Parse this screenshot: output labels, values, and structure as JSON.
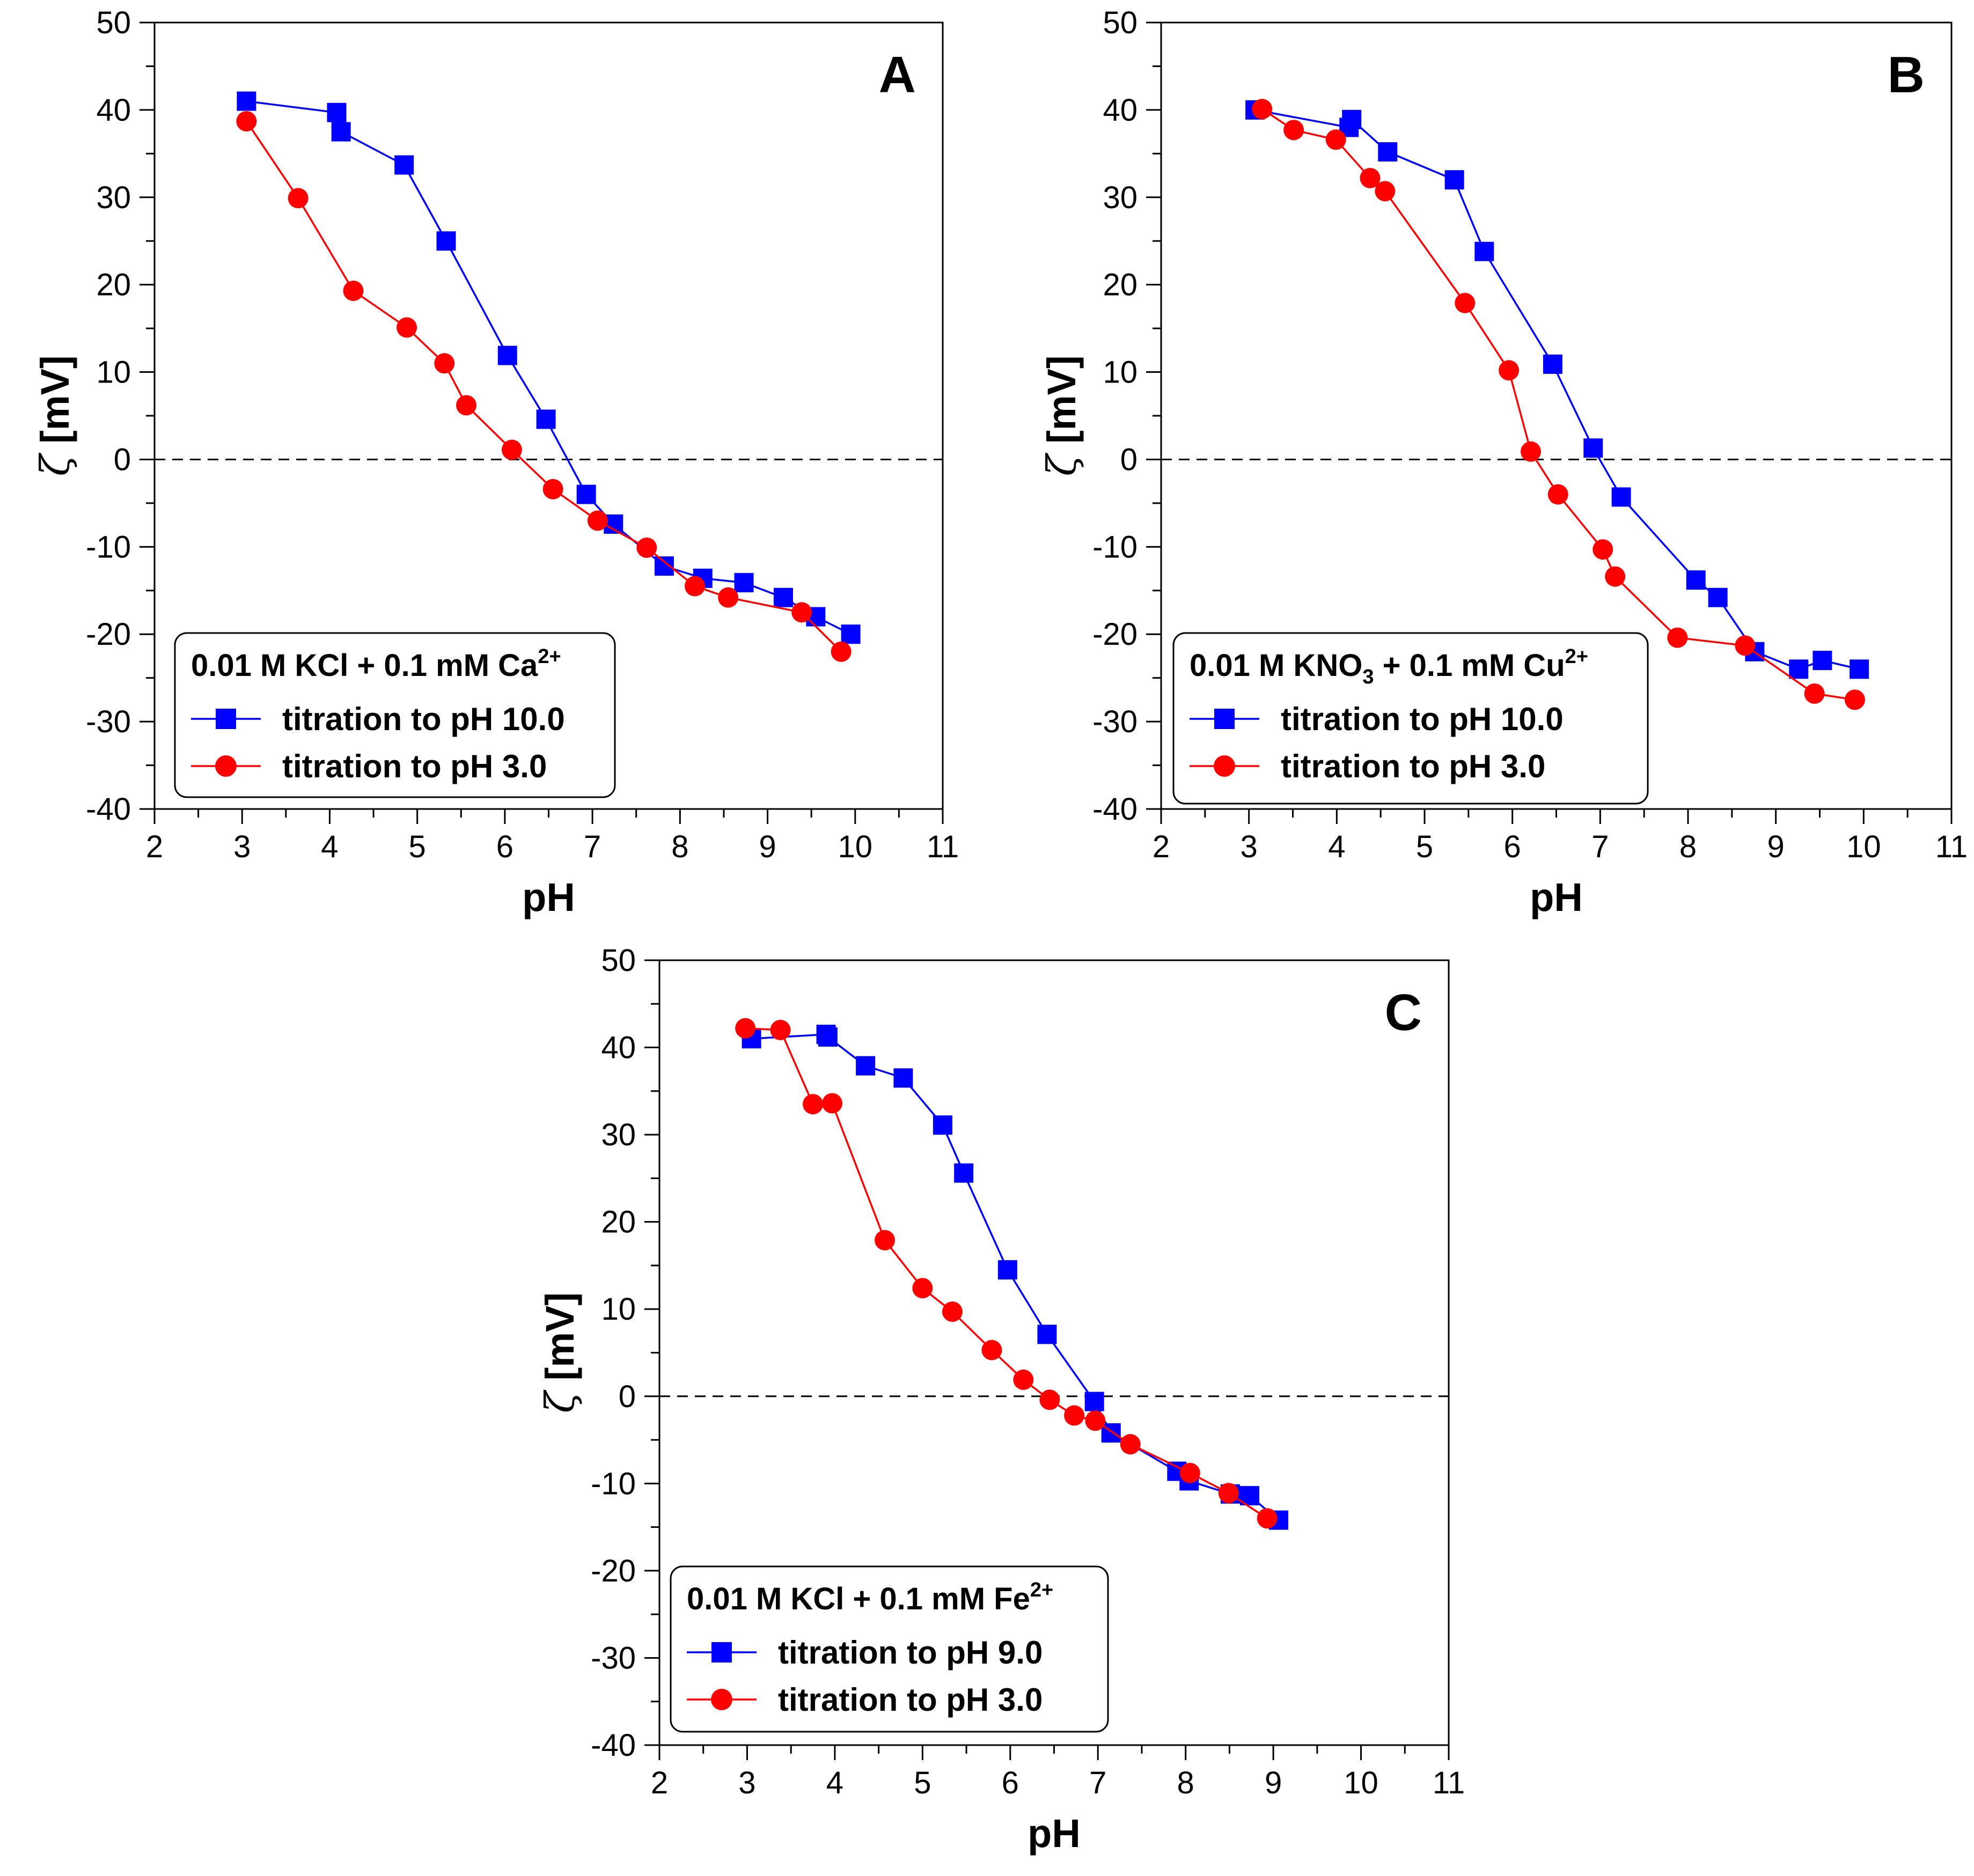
{
  "chart_data": [
    {
      "type": "line",
      "panel_label": "A",
      "xlabel": "pH",
      "ylabel_symbol": "ζ",
      "ylabel_unit": "[mV]",
      "xlim": [
        2,
        11
      ],
      "ylim": [
        -40,
        50
      ],
      "xticks": [
        2,
        3,
        4,
        5,
        6,
        7,
        8,
        9,
        10,
        11
      ],
      "yticks": [
        -40,
        -30,
        -20,
        -10,
        0,
        10,
        20,
        30,
        40,
        50
      ],
      "zero_line": true,
      "legend": {
        "title_base": "0.01 M KCl + 0.1 mM Ca",
        "title_sub": "",
        "title_mid": "",
        "title_sup": "2+",
        "placement": "bottom-left"
      },
      "series": [
        {
          "name": "titration to pH 10.0",
          "color": "#0000ff",
          "marker": "square",
          "x": [
            3.05,
            4.08,
            4.13,
            4.85,
            5.33,
            6.03,
            6.47,
            6.93,
            7.24,
            7.82,
            8.26,
            8.73,
            9.18,
            9.55,
            9.95
          ],
          "y": [
            41.0,
            39.7,
            37.5,
            33.7,
            25.0,
            11.9,
            4.6,
            -4.0,
            -7.4,
            -12.2,
            -13.6,
            -14.1,
            -15.8,
            -18.0,
            -20.0
          ]
        },
        {
          "name": "titration to pH 3.0",
          "color": "#ff0000",
          "marker": "circle",
          "x": [
            3.05,
            3.64,
            4.27,
            4.88,
            5.31,
            5.56,
            6.08,
            6.55,
            7.06,
            7.62,
            8.17,
            8.55,
            9.39,
            9.84
          ],
          "y": [
            38.7,
            29.9,
            19.3,
            15.1,
            11.0,
            6.2,
            1.1,
            -3.4,
            -7.0,
            -10.1,
            -14.5,
            -15.8,
            -17.5,
            -22.0
          ]
        }
      ]
    },
    {
      "type": "line",
      "panel_label": "B",
      "xlabel": "pH",
      "ylabel_symbol": "ζ",
      "ylabel_unit": "[mV]",
      "xlim": [
        2,
        11
      ],
      "ylim": [
        -40,
        50
      ],
      "xticks": [
        2,
        3,
        4,
        5,
        6,
        7,
        8,
        9,
        10,
        11
      ],
      "yticks": [
        -40,
        -30,
        -20,
        -10,
        0,
        10,
        20,
        30,
        40,
        50
      ],
      "zero_line": true,
      "legend": {
        "title_base": "0.01 M KNO",
        "title_sub": "3",
        "title_mid": " + 0.1 mM Cu",
        "title_sup": "2+",
        "placement": "bottom-left"
      },
      "series": [
        {
          "name": "titration to pH 10.0",
          "color": "#0000ff",
          "marker": "square",
          "x": [
            3.07,
            4.14,
            4.17,
            4.58,
            5.34,
            5.68,
            6.46,
            6.92,
            7.24,
            8.09,
            8.34,
            8.76,
            9.26,
            9.53,
            9.95
          ],
          "y": [
            40.0,
            38.0,
            38.9,
            35.2,
            32.0,
            23.8,
            10.9,
            1.3,
            -4.3,
            -13.8,
            -15.8,
            -22.0,
            -24.0,
            -23.0,
            -24.0
          ]
        },
        {
          "name": "titration to pH 3.0",
          "color": "#ff0000",
          "marker": "circle",
          "x": [
            3.15,
            3.51,
            3.99,
            4.38,
            4.55,
            5.46,
            5.96,
            6.21,
            6.52,
            7.03,
            7.17,
            7.88,
            8.65,
            9.44,
            9.9
          ],
          "y": [
            40.1,
            37.7,
            36.6,
            32.2,
            30.7,
            17.9,
            10.2,
            0.9,
            -4.0,
            -10.3,
            -13.4,
            -20.4,
            -21.3,
            -26.8,
            -27.5
          ]
        }
      ]
    },
    {
      "type": "line",
      "panel_label": "C",
      "xlabel": "pH",
      "ylabel_symbol": "ζ",
      "ylabel_unit": "[mV]",
      "xlim": [
        2,
        11
      ],
      "ylim": [
        -40,
        50
      ],
      "xticks": [
        2,
        3,
        4,
        5,
        6,
        7,
        8,
        9,
        10,
        11
      ],
      "yticks": [
        -40,
        -30,
        -20,
        -10,
        0,
        10,
        20,
        30,
        40,
        50
      ],
      "zero_line": true,
      "legend": {
        "title_base": "0.01 M KCl + 0.1 mM Fe",
        "title_sub": "",
        "title_mid": "",
        "title_sup": "2+",
        "placement": "bottom-left"
      },
      "series": [
        {
          "name": "titration to pH 9.0",
          "color": "#0000ff",
          "marker": "square",
          "x": [
            3.05,
            3.9,
            3.92,
            4.35,
            4.78,
            5.23,
            5.47,
            5.97,
            6.42,
            6.96,
            7.15,
            7.9,
            8.04,
            8.51,
            8.73,
            9.06
          ],
          "y": [
            41.0,
            41.5,
            41.2,
            37.9,
            36.5,
            31.1,
            25.6,
            14.5,
            7.1,
            -0.6,
            -4.2,
            -8.6,
            -9.7,
            -11.2,
            -11.4,
            -14.2
          ]
        },
        {
          "name": "titration to pH 3.0",
          "color": "#ff0000",
          "marker": "circle",
          "x": [
            2.98,
            3.38,
            3.75,
            3.97,
            4.57,
            5.0,
            5.34,
            5.79,
            6.15,
            6.45,
            6.73,
            6.97,
            7.37,
            8.05,
            8.49,
            8.93
          ],
          "y": [
            42.2,
            42.0,
            33.5,
            33.6,
            17.9,
            12.4,
            9.7,
            5.3,
            1.9,
            -0.4,
            -2.2,
            -2.8,
            -5.5,
            -8.8,
            -11.1,
            -14.0
          ]
        }
      ]
    }
  ]
}
